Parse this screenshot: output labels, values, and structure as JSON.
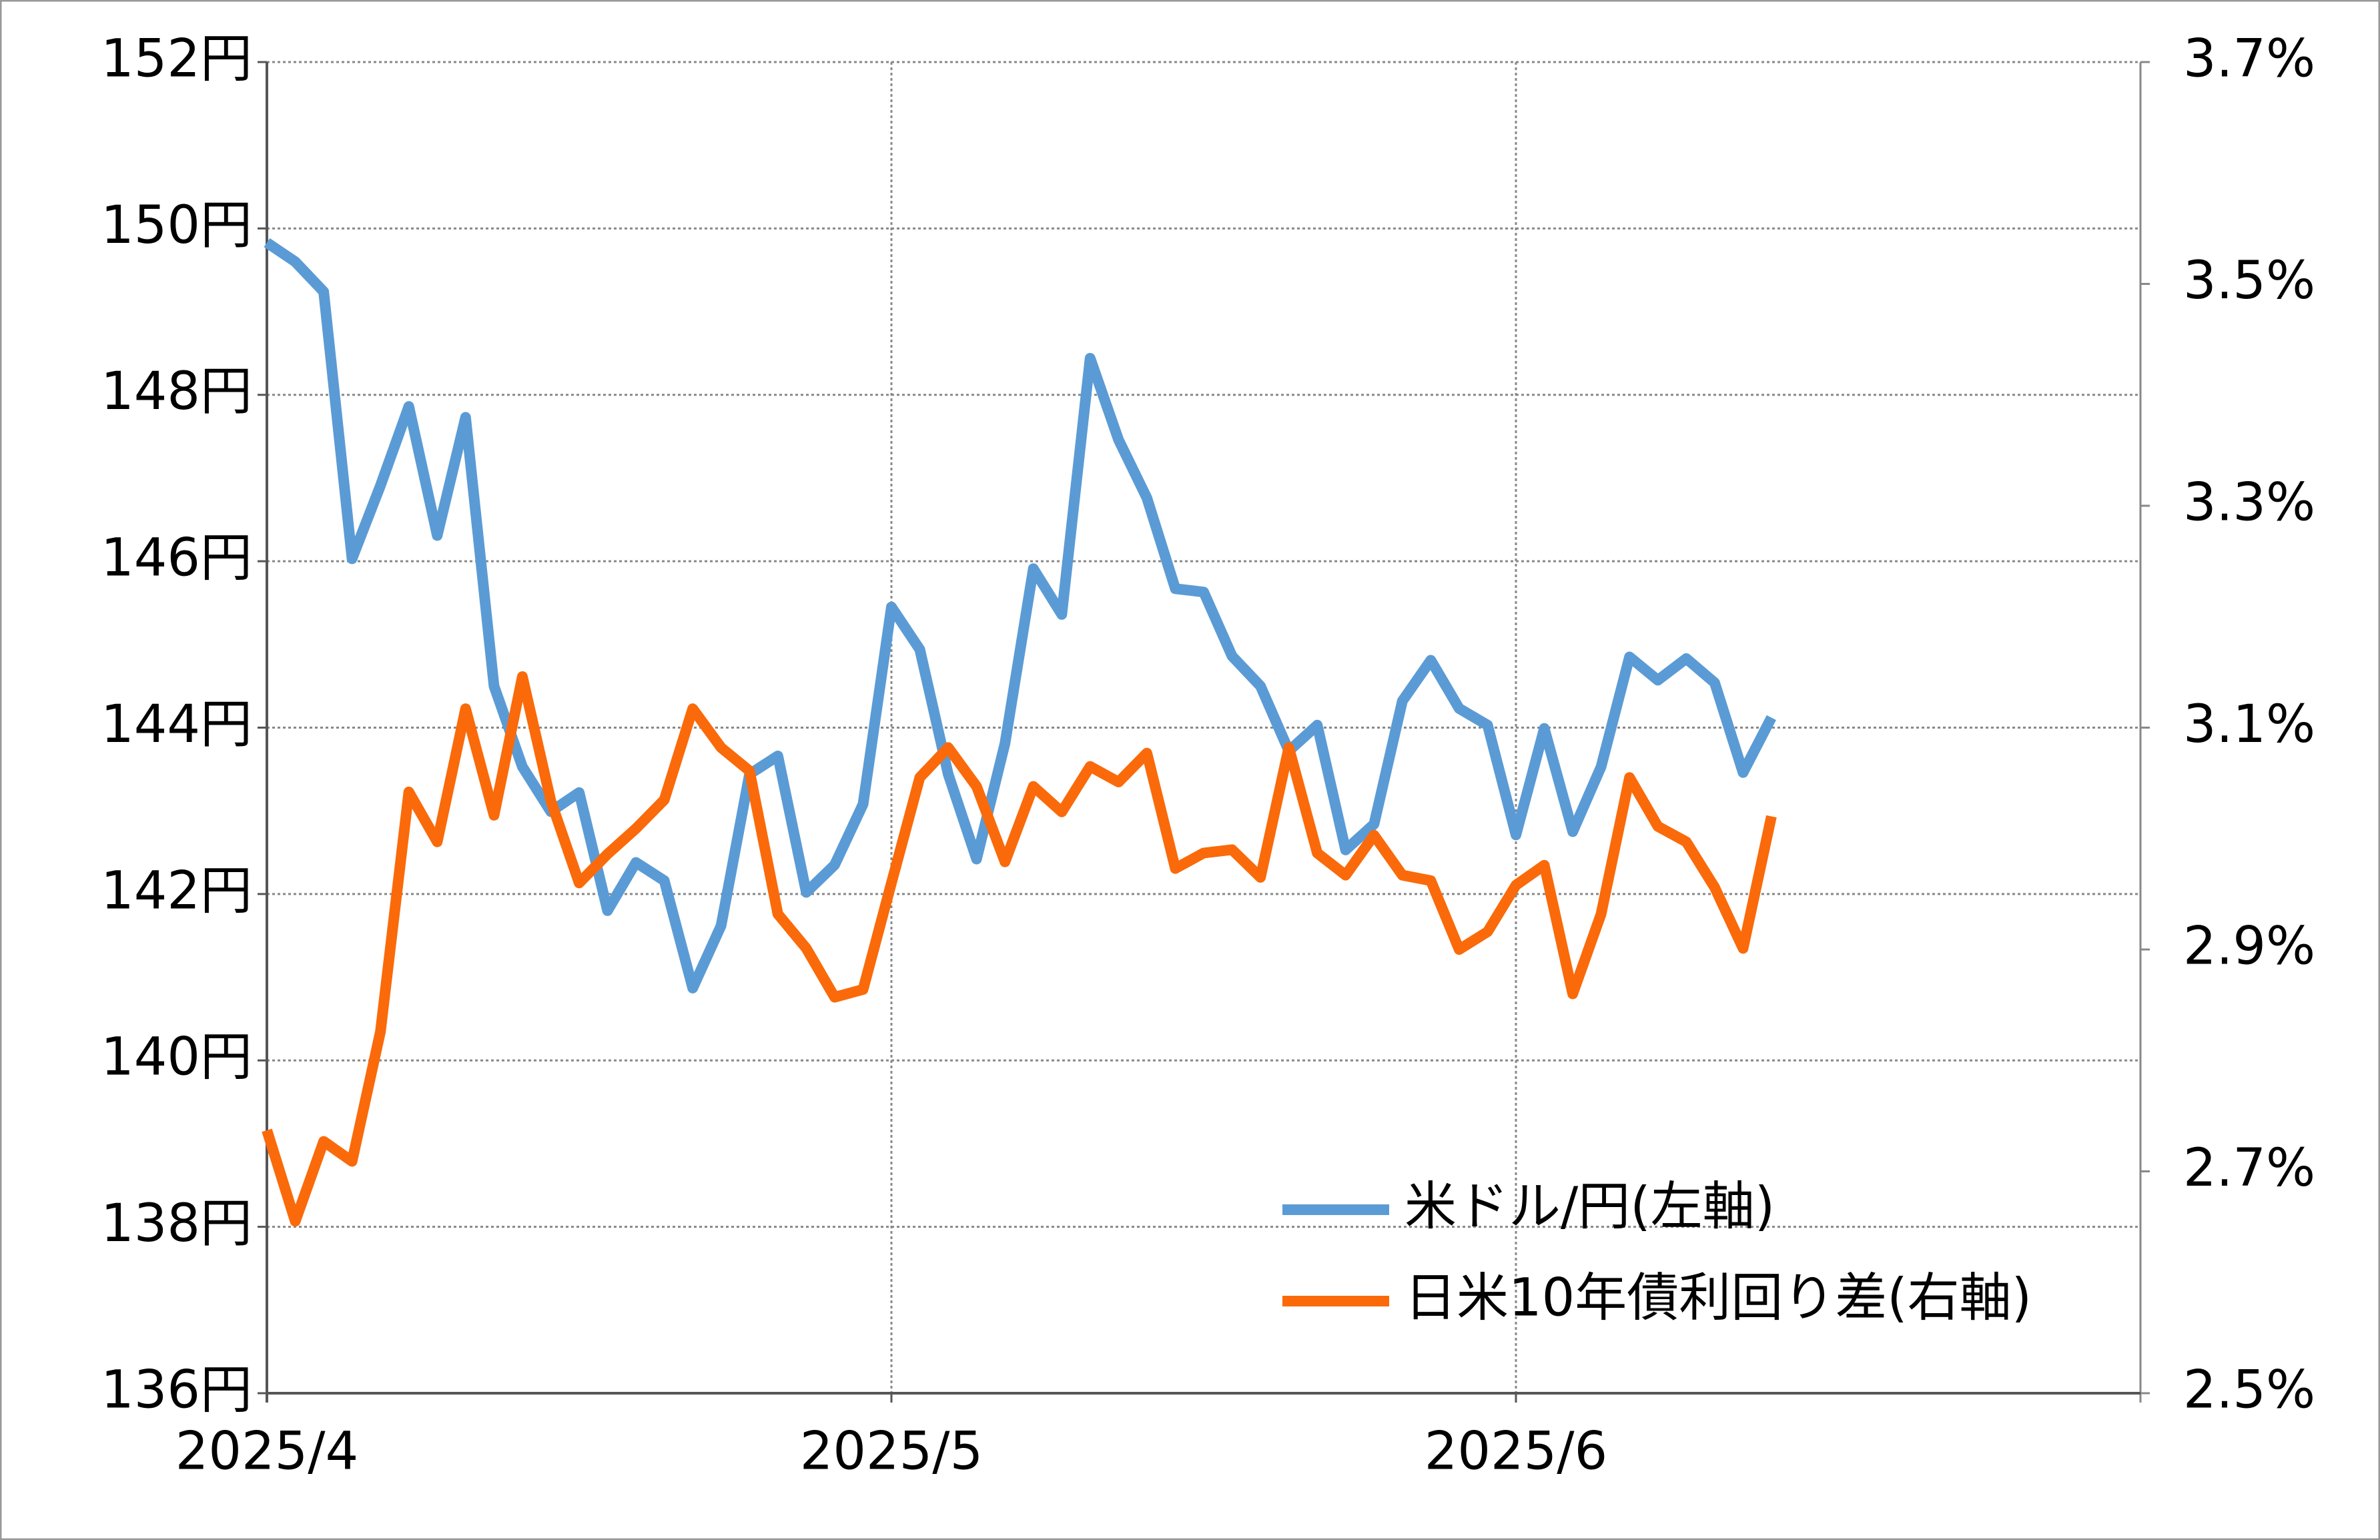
{
  "chart_data": {
    "type": "line",
    "categories": [
      "2025/4",
      null,
      null,
      null,
      null,
      null,
      null,
      null,
      null,
      null,
      null,
      null,
      null,
      null,
      null,
      null,
      null,
      null,
      null,
      null,
      null,
      null,
      "2025/5",
      null,
      null,
      null,
      null,
      null,
      null,
      null,
      null,
      null,
      null,
      null,
      null,
      null,
      null,
      null,
      null,
      null,
      null,
      null,
      null,
      null,
      "2025/6",
      null,
      null,
      null,
      null,
      null,
      null,
      null,
      null,
      null,
      null,
      null,
      null,
      null,
      null,
      null,
      null,
      null,
      null,
      null,
      null,
      null,
      null
    ],
    "series": [
      {
        "name": "米ドル/円(左軸)",
        "color": "#5b9bd5",
        "axis": "y",
        "values": [
          149.83,
          149.6,
          149.24,
          146.03,
          146.91,
          147.86,
          146.31,
          147.73,
          144.5,
          143.53,
          142.99,
          143.22,
          141.8,
          142.38,
          142.16,
          140.87,
          141.62,
          143.44,
          143.66,
          142.02,
          142.35,
          143.08,
          145.45,
          144.94,
          143.44,
          142.42,
          143.81,
          145.91,
          145.36,
          148.44,
          147.46,
          146.76,
          145.67,
          145.63,
          144.86,
          144.5,
          143.72,
          144.03,
          142.53,
          142.84,
          144.32,
          144.81,
          144.23,
          144.03,
          142.71,
          143.99,
          142.75,
          143.53,
          144.85,
          144.57,
          144.83,
          144.54,
          143.46,
          144.12,
          null,
          null,
          null,
          null,
          null,
          null,
          null,
          null,
          null,
          null,
          null,
          null,
          null
        ]
      },
      {
        "name": "日米10年債利回り差(右軸)",
        "color": "#fa6a0a",
        "axis": "y2",
        "values": [
          2.737,
          2.655,
          2.727,
          2.709,
          2.826,
          3.042,
          2.997,
          3.117,
          3.021,
          3.146,
          3.034,
          2.96,
          2.986,
          3.009,
          3.035,
          3.117,
          3.082,
          3.061,
          2.932,
          2.901,
          2.857,
          2.864,
          2.96,
          3.055,
          3.082,
          3.047,
          2.979,
          3.047,
          3.024,
          3.065,
          3.051,
          3.077,
          2.973,
          2.987,
          2.99,
          2.965,
          3.082,
          2.987,
          2.967,
          3.003,
          2.967,
          2.962,
          2.9,
          2.916,
          2.958,
          2.976,
          2.86,
          2.932,
          3.055,
          3.011,
          2.997,
          2.956,
          2.901,
          3.02,
          null,
          null,
          null,
          null,
          null,
          null,
          null,
          null,
          null,
          null,
          null,
          null,
          null
        ]
      }
    ],
    "ylim": [
      136,
      152
    ],
    "yticks": [
      {
        "value": 136,
        "label": "136円"
      },
      {
        "value": 138,
        "label": "138円"
      },
      {
        "value": 140,
        "label": "140円"
      },
      {
        "value": 142,
        "label": "142円"
      },
      {
        "value": 144,
        "label": "144円"
      },
      {
        "value": 146,
        "label": "146円"
      },
      {
        "value": 148,
        "label": "148円"
      },
      {
        "value": 150,
        "label": "150円"
      },
      {
        "value": 152,
        "label": "152円"
      }
    ],
    "y2lim": [
      2.5,
      3.7
    ],
    "y2ticks": [
      {
        "value": 2.5,
        "label": "2.5%"
      },
      {
        "value": 2.7,
        "label": "2.7%"
      },
      {
        "value": 2.9,
        "label": "2.9%"
      },
      {
        "value": 3.1,
        "label": "3.1%"
      },
      {
        "value": 3.3,
        "label": "3.3%"
      },
      {
        "value": 3.5,
        "label": "3.5%"
      },
      {
        "value": 3.7,
        "label": "3.7%"
      }
    ],
    "grid": true,
    "legend": "lower right"
  }
}
